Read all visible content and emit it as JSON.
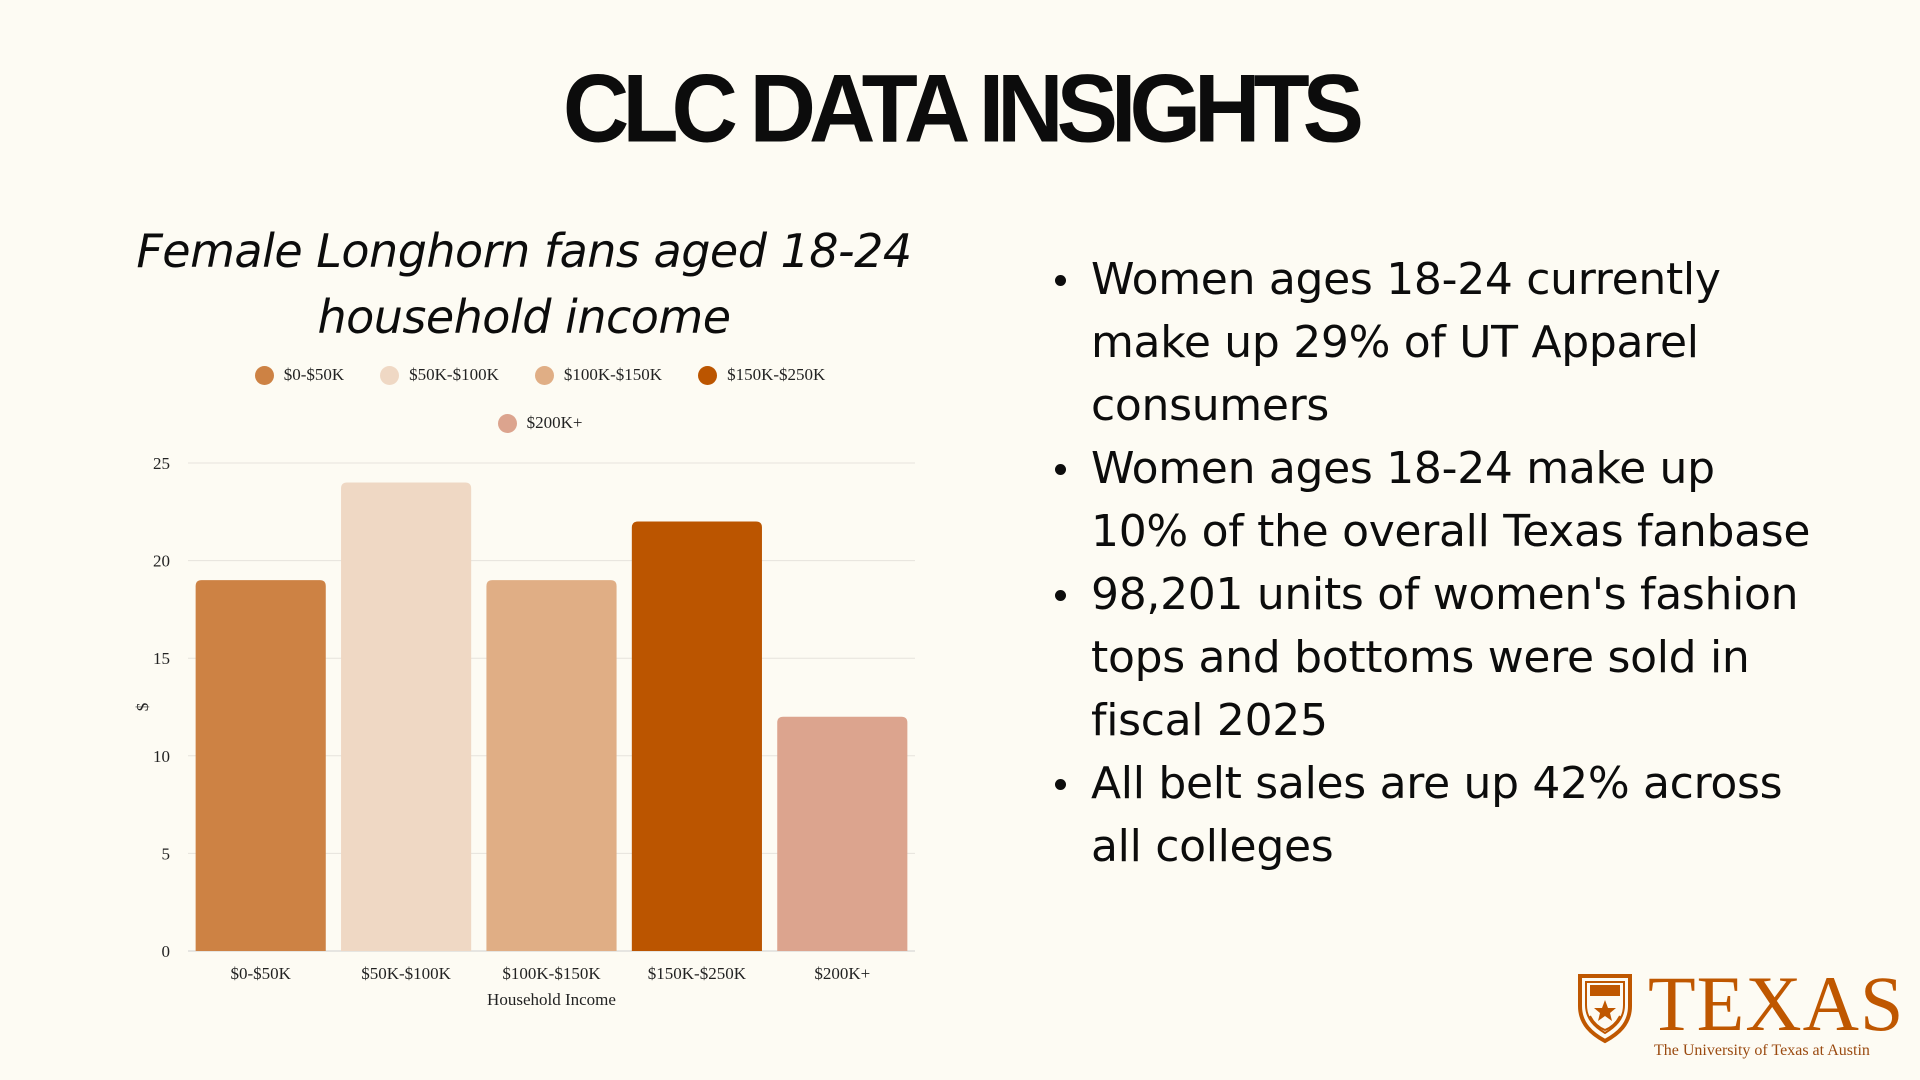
{
  "page": {
    "title": "CLC DATA INSIGHTS"
  },
  "chart_data": {
    "type": "bar",
    "title_line1": "Female Longhorn fans aged 18-24",
    "title_line2": "household income",
    "categories": [
      "$0-$50K",
      "$50K-$100K",
      "$100K-$150K",
      "$150K-$250K",
      "$200K+"
    ],
    "values": [
      19,
      24,
      19,
      22,
      12
    ],
    "colors": [
      "#cd8244",
      "#efd8c4",
      "#e0ae85",
      "#bb5500",
      "#dca48e"
    ],
    "legend": [
      "$0-$50K",
      "$50K-$100K",
      "$100K-$150K",
      "$150K-$250K",
      "$200K+"
    ],
    "legend_position": "top-center",
    "xlabel": "Household Income",
    "ylabel": "$",
    "ylim": [
      0,
      25
    ],
    "yticks": [
      0,
      5,
      10,
      15,
      20,
      25
    ],
    "grid": true
  },
  "insights": [
    "Women ages 18-24 currently make up 29% of UT Apparel consumers",
    "Women ages 18-24 make up 10% of the overall Texas fanbase",
    "98,201 units of women's fashion tops and bottoms were sold in fiscal 2025",
    "All belt sales are up 42% across all colleges"
  ],
  "logo": {
    "wordmark": "TEXAS",
    "subtitle": "The University of Texas at Austin",
    "color": "#bf5700"
  }
}
